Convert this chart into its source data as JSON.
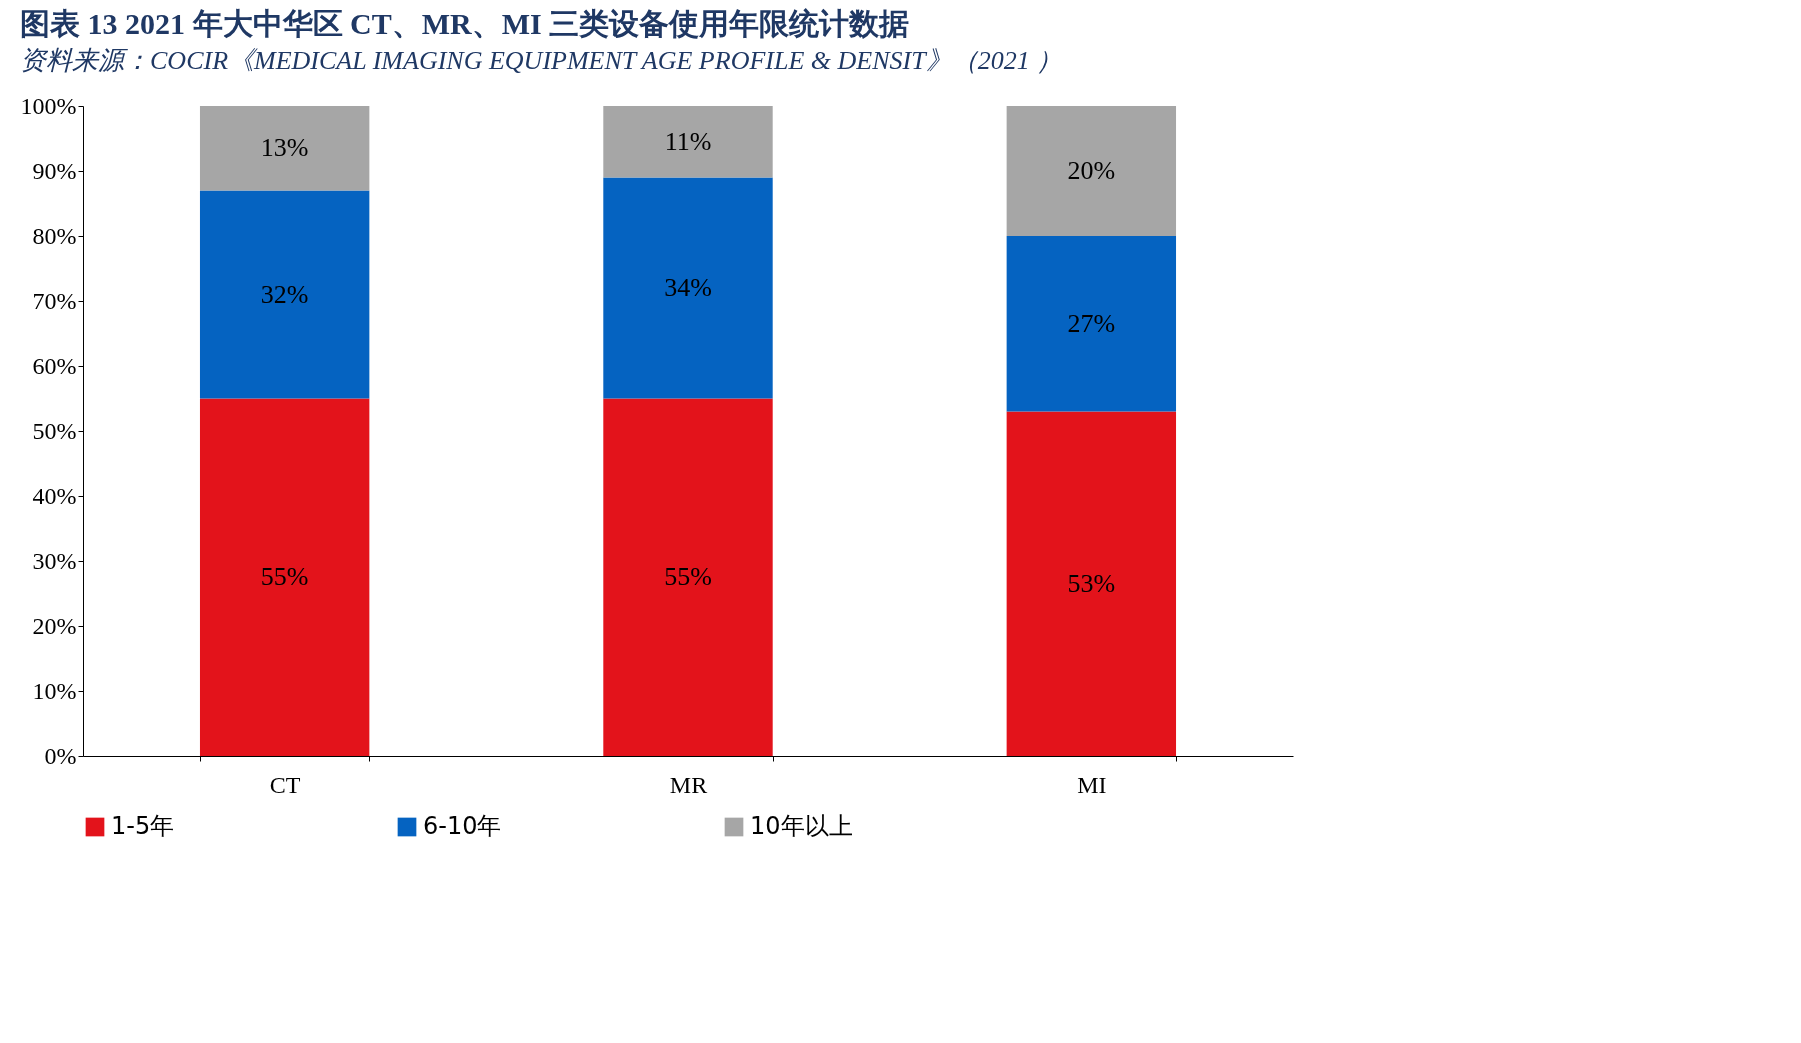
{
  "chart_data": {
    "type": "bar",
    "stacked": true,
    "title": "图表 13   2021 年大中华区 CT、MR、MI 三类设备使用年限统计数据",
    "categories": [
      "CT",
      "MR",
      "MI"
    ],
    "series": [
      {
        "name": "1-5年",
        "color": "#e3131b",
        "values": [
          55,
          55,
          53
        ]
      },
      {
        "name": "6-10年",
        "color": "#0563c1",
        "values": [
          32,
          34,
          27
        ]
      },
      {
        "name": "10年以上",
        "color": "#a6a6a6",
        "values": [
          13,
          11,
          20
        ]
      }
    ],
    "value_labels": [
      [
        "55%",
        "55%",
        "53%"
      ],
      [
        "32%",
        "34%",
        "27%"
      ],
      [
        "13%",
        "11%",
        "20%"
      ]
    ],
    "ylim": [
      0,
      100
    ],
    "yticks": [
      {
        "value": 0,
        "label": "0%"
      },
      {
        "value": 10,
        "label": "10%"
      },
      {
        "value": 20,
        "label": "20%"
      },
      {
        "value": 30,
        "label": "30%"
      },
      {
        "value": 40,
        "label": "40%"
      },
      {
        "value": 50,
        "label": "50%"
      },
      {
        "value": 60,
        "label": "60%"
      },
      {
        "value": 70,
        "label": "70%"
      },
      {
        "value": 80,
        "label": "80%"
      },
      {
        "value": 90,
        "label": "90%"
      },
      {
        "value": 100,
        "label": "100%"
      }
    ],
    "grid": false,
    "legend": "bottom",
    "annotations": [
      "资料来源：COCIR《MEDICAL IMAGING EQUIPMENT AGE PROFILE & DENSIT》（2021 ）"
    ]
  }
}
